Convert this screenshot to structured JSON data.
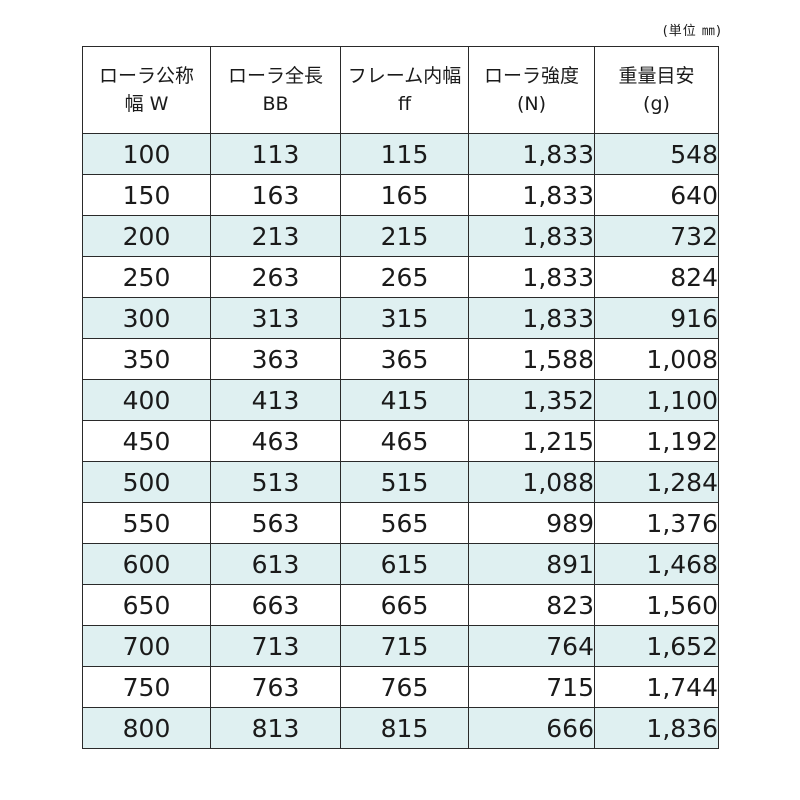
{
  "unit_note": "(単位 ㎜)",
  "table": {
    "headers": [
      {
        "line1": "ローラ公称",
        "line2": "幅 W"
      },
      {
        "line1": "ローラ全長",
        "line2": "BB"
      },
      {
        "line1": "フレーム内幅",
        "line2": "ff"
      },
      {
        "line1": "ローラ強度",
        "line2": "(N)"
      },
      {
        "line1": "重量目安",
        "line2": "(g)"
      }
    ],
    "rows": [
      [
        "100",
        "113",
        "115",
        "1,833",
        "548"
      ],
      [
        "150",
        "163",
        "165",
        "1,833",
        "640"
      ],
      [
        "200",
        "213",
        "215",
        "1,833",
        "732"
      ],
      [
        "250",
        "263",
        "265",
        "1,833",
        "824"
      ],
      [
        "300",
        "313",
        "315",
        "1,833",
        "916"
      ],
      [
        "350",
        "363",
        "365",
        "1,588",
        "1,008"
      ],
      [
        "400",
        "413",
        "415",
        "1,352",
        "1,100"
      ],
      [
        "450",
        "463",
        "465",
        "1,215",
        "1,192"
      ],
      [
        "500",
        "513",
        "515",
        "1,088",
        "1,284"
      ],
      [
        "550",
        "563",
        "565",
        "989",
        "1,376"
      ],
      [
        "600",
        "613",
        "615",
        "891",
        "1,468"
      ],
      [
        "650",
        "663",
        "665",
        "823",
        "1,560"
      ],
      [
        "700",
        "713",
        "715",
        "764",
        "1,652"
      ],
      [
        "750",
        "763",
        "765",
        "715",
        "1,744"
      ],
      [
        "800",
        "813",
        "815",
        "666",
        "1,836"
      ]
    ]
  },
  "colors": {
    "stripe": "#dff0f1",
    "border": "#2a2a2a"
  }
}
